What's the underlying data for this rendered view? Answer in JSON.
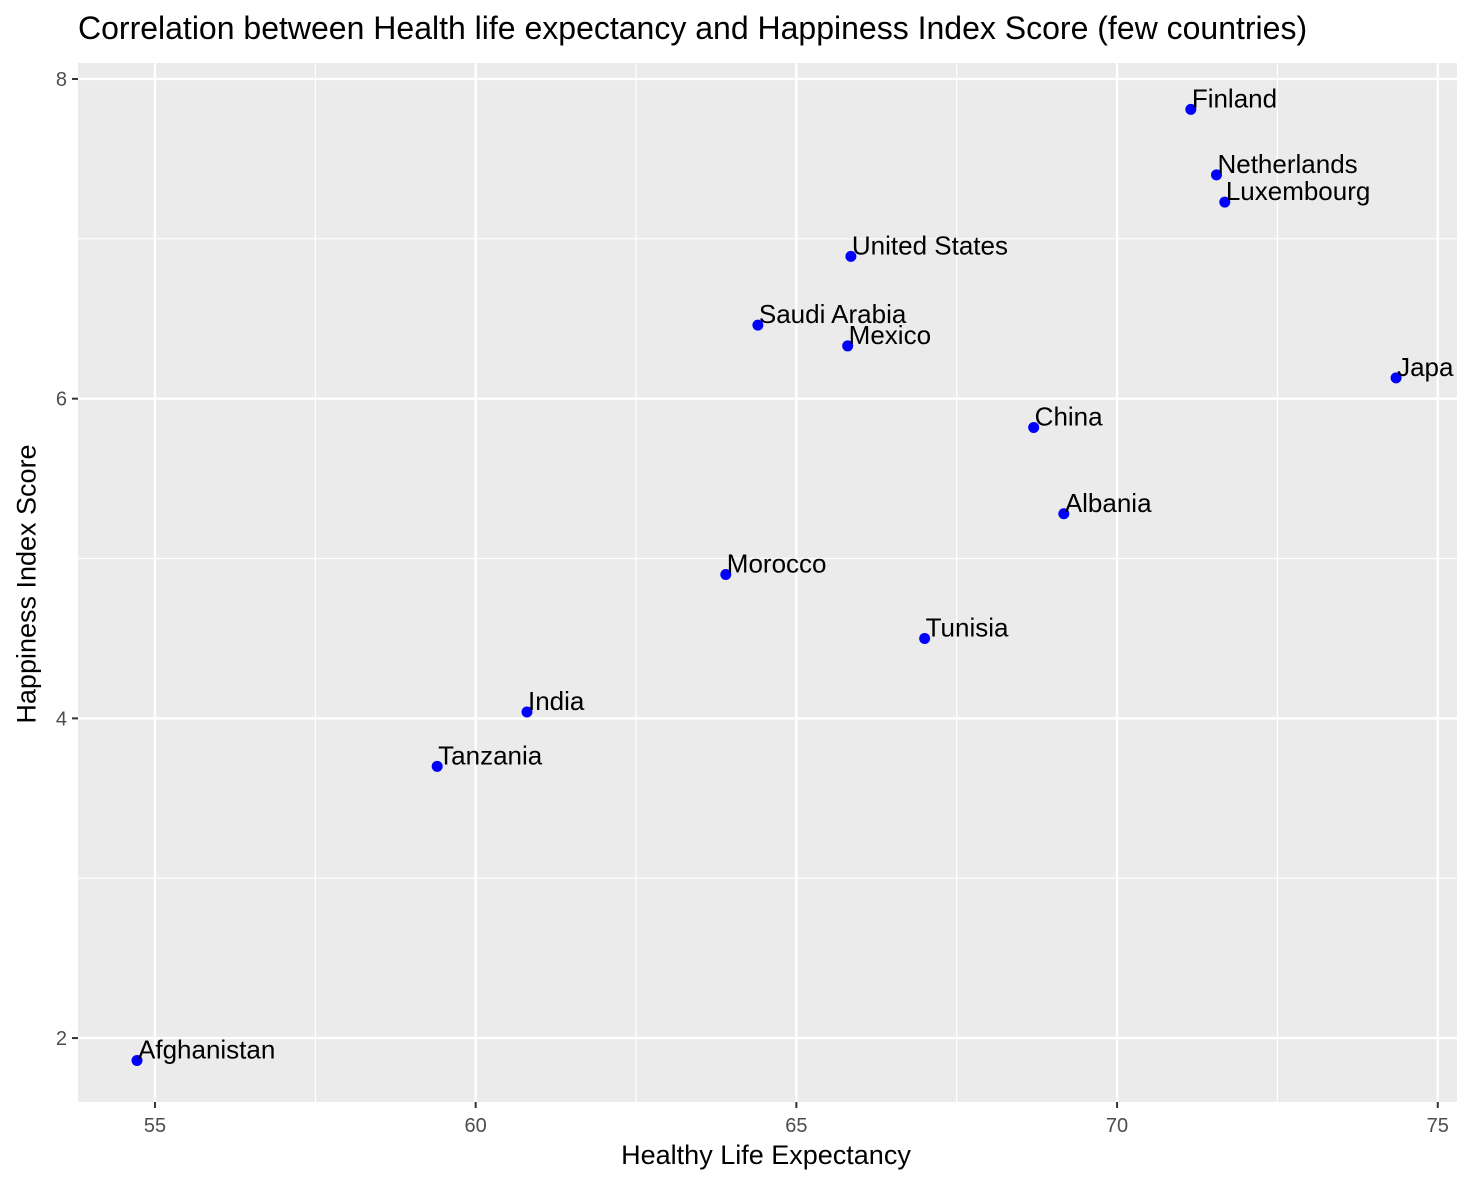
{
  "chart_data": {
    "type": "scatter",
    "title": "Correlation between Health life expectancy and Happiness Index Score (few countries)",
    "xlabel": "Healthy Life Expectancy",
    "ylabel": "Happiness Index Score",
    "xlim": [
      53.8,
      75.3
    ],
    "ylim": [
      1.6,
      8.1
    ],
    "x_ticks": [
      55,
      60,
      65,
      70,
      75
    ],
    "y_ticks": [
      2,
      4,
      6,
      8
    ],
    "grid": true,
    "point_color": "#0000ff",
    "panel_color": "#ebebeb",
    "grid_color": "#ffffff",
    "points": [
      {
        "label": "Finland",
        "x": 71.15,
        "y": 7.81
      },
      {
        "label": "Netherlands",
        "x": 71.55,
        "y": 7.4
      },
      {
        "label": "Luxembourg",
        "x": 71.68,
        "y": 7.23
      },
      {
        "label": "United States",
        "x": 65.85,
        "y": 6.89
      },
      {
        "label": "Saudi Arabia",
        "x": 64.4,
        "y": 6.46
      },
      {
        "label": "Mexico",
        "x": 65.8,
        "y": 6.33
      },
      {
        "label": "Japa",
        "x": 74.35,
        "y": 6.13
      },
      {
        "label": "China",
        "x": 68.7,
        "y": 5.82
      },
      {
        "label": "Albania",
        "x": 69.17,
        "y": 5.28
      },
      {
        "label": "Morocco",
        "x": 63.9,
        "y": 4.9
      },
      {
        "label": "Tunisia",
        "x": 67.0,
        "y": 4.5
      },
      {
        "label": "India",
        "x": 60.8,
        "y": 4.04
      },
      {
        "label": "Tanzania",
        "x": 59.4,
        "y": 3.7
      },
      {
        "label": "Afghanistan",
        "x": 54.72,
        "y": 1.86
      }
    ]
  }
}
